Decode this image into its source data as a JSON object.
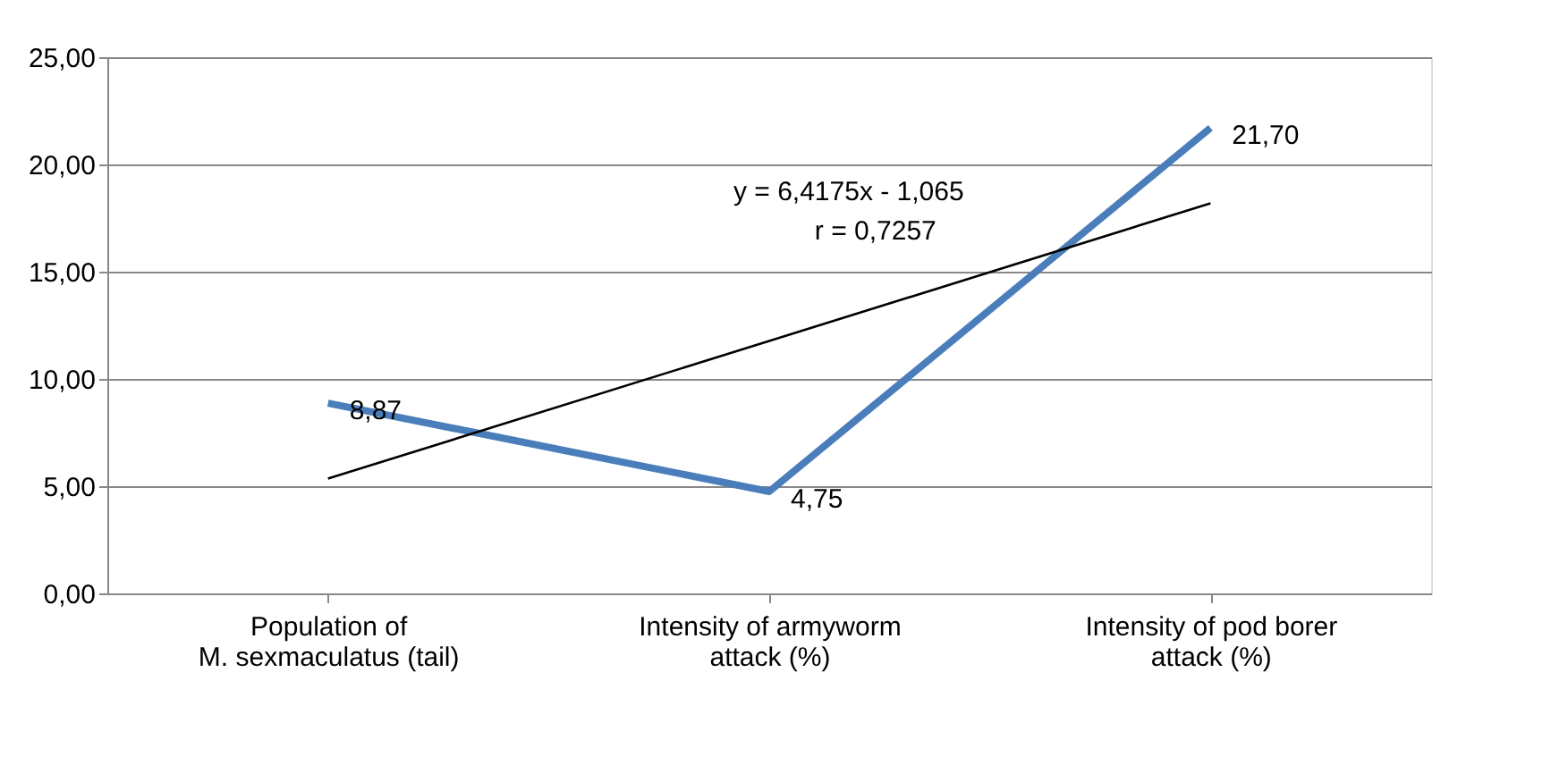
{
  "chart_data": {
    "type": "line",
    "categories": [
      "Population of\nM. sexmaculatus (tail)",
      "Intensity of armyworm\nattack (%)",
      "Intensity of pod borer\nattack (%)"
    ],
    "series": [
      {
        "color": "#4a7ebb",
        "values": [
          8.87,
          4.75,
          21.7
        ],
        "value_labels": [
          "8,87",
          "4,75",
          "21,70"
        ]
      },
      {
        "type": "line",
        "color": "#000000",
        "values": [
          5.35,
          11.77,
          18.19
        ]
      }
    ],
    "annotations": [
      "y = 6,4175x - 1,065",
      "r = 0,7257"
    ],
    "ylim": [
      0,
      25
    ],
    "yticks": [
      {
        "value": 0,
        "label": "0,00"
      },
      {
        "value": 5,
        "label": "5,00"
      },
      {
        "value": 10,
        "label": "10,00"
      },
      {
        "value": 15,
        "label": "15,00"
      },
      {
        "value": 20,
        "label": "20,00"
      },
      {
        "value": 25,
        "label": "25,00"
      }
    ],
    "grid": "y",
    "legend": false,
    "marker": "none",
    "line_style": "solid"
  }
}
